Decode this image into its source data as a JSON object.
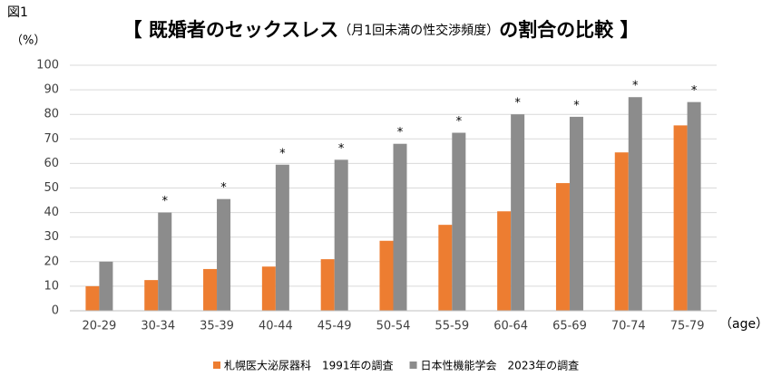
{
  "chart_data": {
    "type": "bar",
    "figure_label": "図1",
    "title": [
      "【 既婚者のセックスレス",
      "（月1回未満の性交渉頻度）",
      "の割合の比較 】"
    ],
    "y_label": "（%）",
    "x_label": "（age）",
    "categories": [
      "20-29",
      "30-34",
      "35-39",
      "40-44",
      "45-49",
      "50-54",
      "55-59",
      "60-64",
      "65-69",
      "70-74",
      "75-79"
    ],
    "series": [
      {
        "name": "札幌医大泌尿器科　1991年の調査",
        "color": "#ed7d31",
        "values": [
          10,
          12.5,
          17,
          18,
          21,
          28.5,
          35,
          40.5,
          52,
          64.5,
          75.5
        ]
      },
      {
        "name": "日本性機能学会　2023年の調査",
        "color": "#8c8c8c",
        "values": [
          20,
          40,
          45.5,
          59.5,
          61.5,
          68,
          72.5,
          80,
          79,
          87,
          85
        ],
        "markers": [
          null,
          "*",
          "*",
          "*",
          "*",
          "*",
          "*",
          "*",
          "*",
          "*",
          "*"
        ]
      }
    ],
    "ylim": [
      0,
      100
    ],
    "yticks": [
      0,
      10,
      20,
      30,
      40,
      50,
      60,
      70,
      80,
      90,
      100
    ],
    "grid": true,
    "legend": "bottom"
  }
}
